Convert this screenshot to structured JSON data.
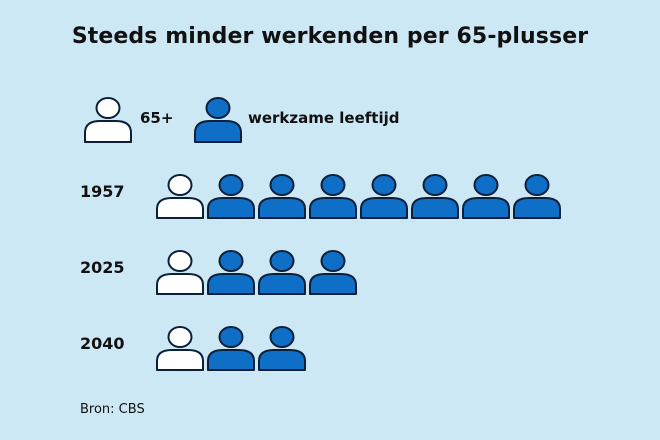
{
  "title": "Steeds minder werkenden per 65-plusser",
  "legend": {
    "elderly_label": "65+",
    "working_label": "werkzame leeftijd"
  },
  "source": "Bron: CBS",
  "colors": {
    "background": "#cde8f5",
    "working": "#0f6fc6",
    "elderly": "#ffffff",
    "outline": "#0b1f3a"
  },
  "chart_data": {
    "type": "pictogram",
    "title": "Steeds minder werkenden per 65-plusser",
    "unit_icons": [
      "65+",
      "werkzame leeftijd"
    ],
    "categories": [
      "1957",
      "2025",
      "2040"
    ],
    "series": [
      {
        "name": "65+",
        "values": [
          1,
          1,
          1
        ]
      },
      {
        "name": "werkzame leeftijd",
        "values": [
          7,
          3,
          2
        ]
      }
    ]
  }
}
